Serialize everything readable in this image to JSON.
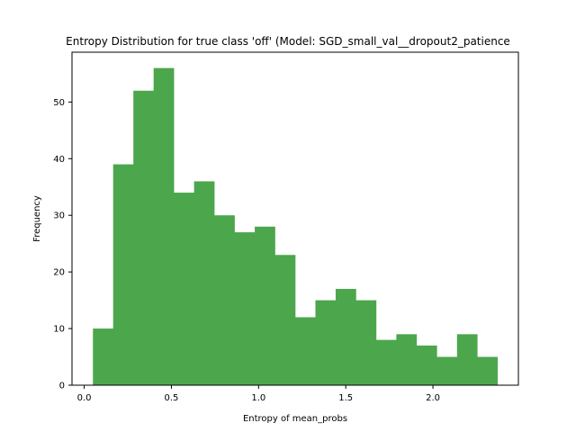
{
  "chart_data": {
    "type": "bar",
    "title": "Entropy Distribution for true class 'off' (Model: SGD_small_val__dropout2_patience",
    "xlabel": "Entropy of mean_probs",
    "ylabel": "Frequency",
    "bar_color": "#4ca64c",
    "xlim": [
      -0.07,
      2.49
    ],
    "ylim": [
      0,
      58.8
    ],
    "x_ticks": [
      0.0,
      0.5,
      1.0,
      1.5,
      2.0
    ],
    "x_tick_labels": [
      "0.0",
      "0.5",
      "1.0",
      "1.5",
      "2.0"
    ],
    "y_ticks": [
      0,
      10,
      20,
      30,
      40,
      50
    ],
    "y_tick_labels": [
      "0",
      "10",
      "20",
      "30",
      "40",
      "50"
    ],
    "bin_edges": [
      0.05,
      0.166,
      0.282,
      0.398,
      0.514,
      0.63,
      0.746,
      0.862,
      0.978,
      1.094,
      1.21,
      1.326,
      1.442,
      1.558,
      1.674,
      1.79,
      1.906,
      2.022,
      2.138,
      2.254,
      2.37
    ],
    "values": [
      10,
      39,
      52,
      56,
      34,
      36,
      30,
      27,
      28,
      23,
      12,
      15,
      17,
      15,
      8,
      9,
      7,
      5,
      9,
      5
    ]
  }
}
